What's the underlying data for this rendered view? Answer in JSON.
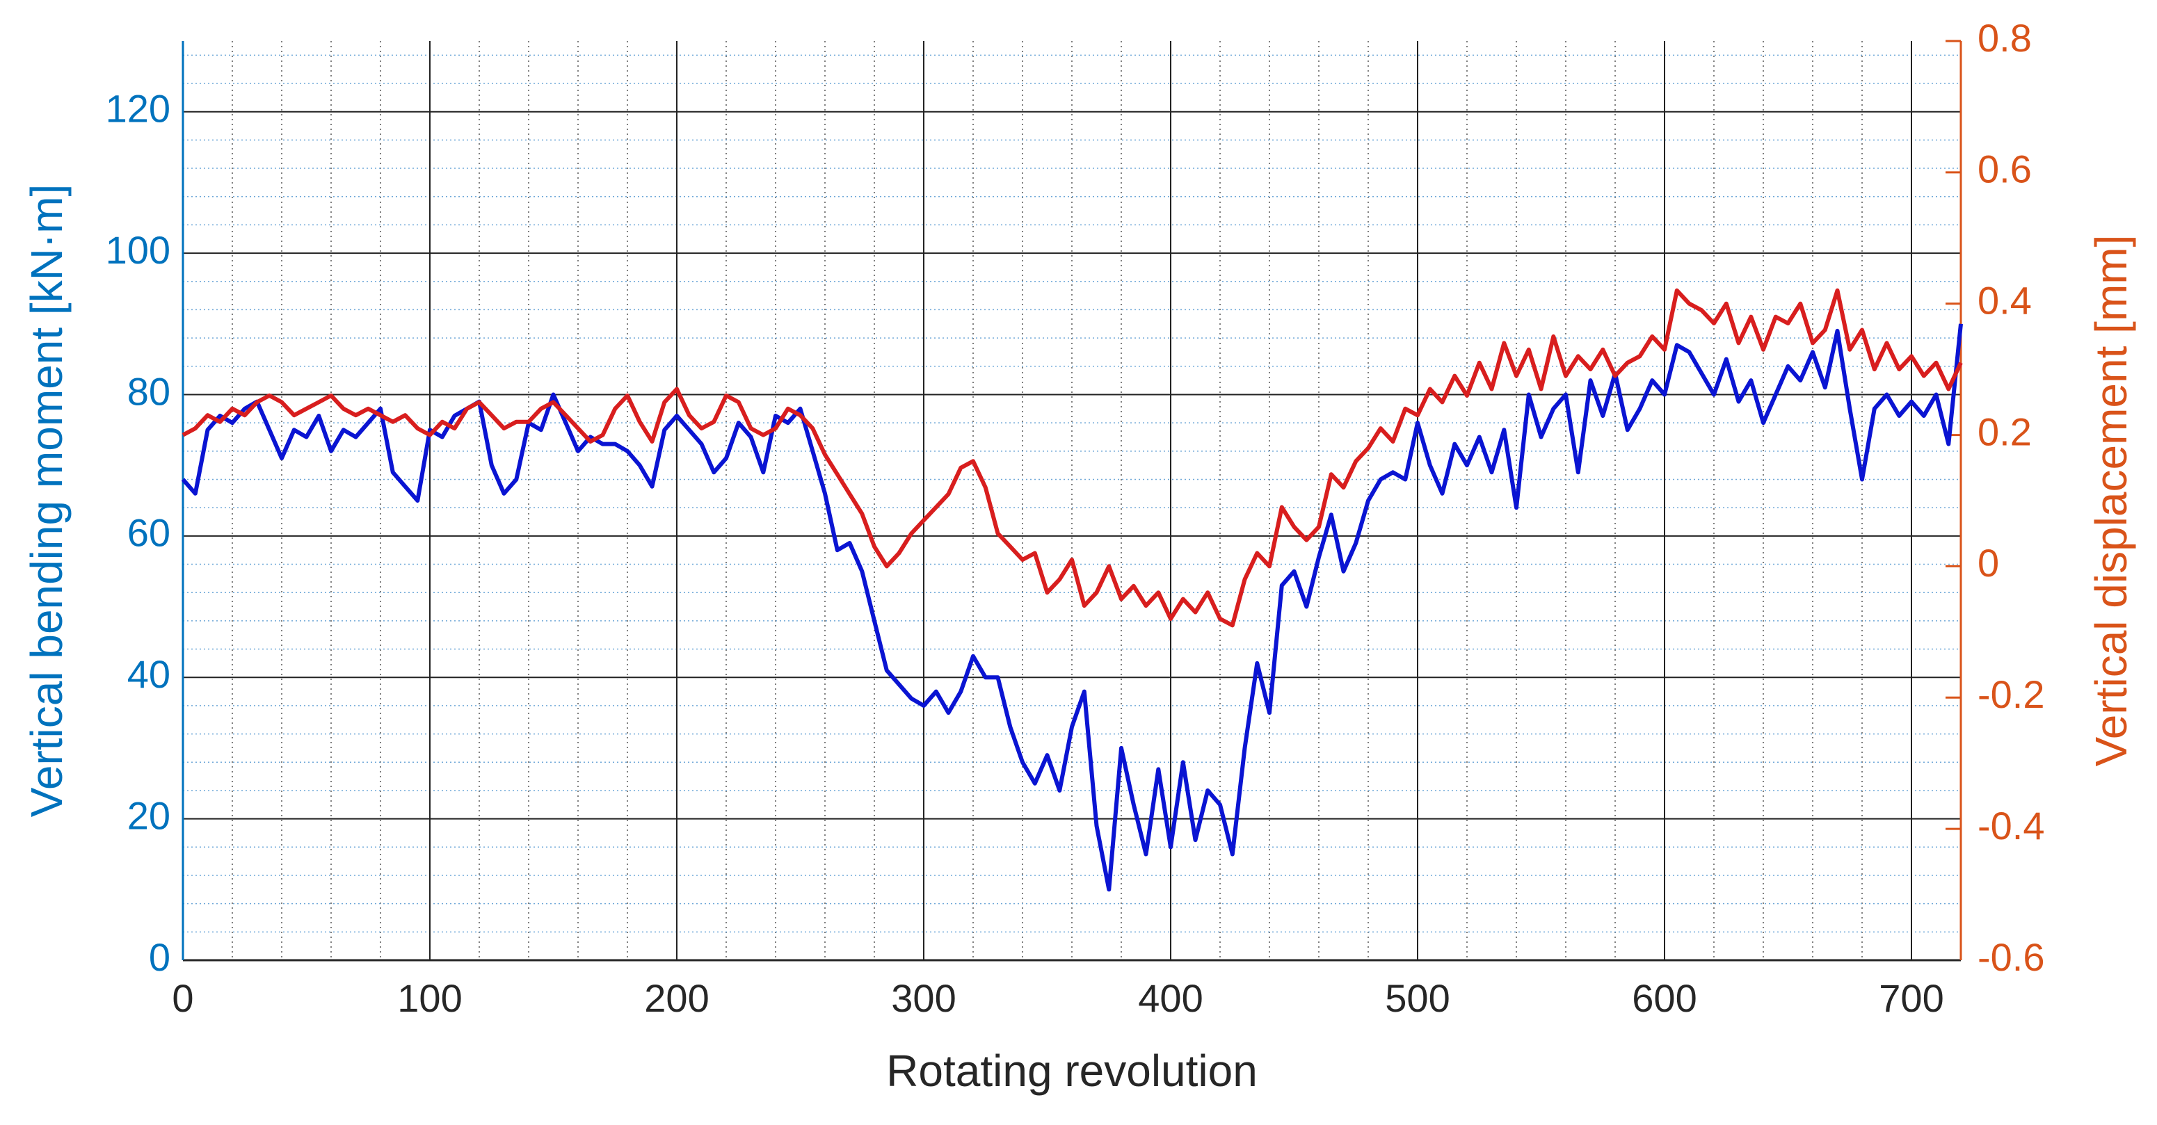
{
  "chart_data": {
    "type": "line",
    "xlabel": "Rotating revolution",
    "ylabel": "Vertical bending moment [kN·m]",
    "y2label": "Vertical displacement [mm]",
    "xlim": [
      0,
      720
    ],
    "xticks": [
      0,
      100,
      200,
      300,
      400,
      500,
      600,
      700
    ],
    "ylim": [
      0,
      130
    ],
    "yticks": [
      0,
      20,
      40,
      60,
      80,
      100,
      120
    ],
    "y2lim": [
      -0.6,
      0.8
    ],
    "y2ticks": [
      -0.6,
      -0.4,
      -0.2,
      0,
      0.2,
      0.4,
      0.6,
      0.8
    ],
    "xminorticks": [
      20,
      40,
      60,
      80,
      120,
      140,
      160,
      180,
      220,
      240,
      260,
      280,
      320,
      340,
      360,
      380,
      420,
      440,
      460,
      480,
      520,
      540,
      560,
      580,
      620,
      640,
      660,
      680,
      720
    ],
    "yminorticks": [
      4,
      8,
      12,
      16,
      24,
      28,
      32,
      36,
      44,
      48,
      52,
      56,
      64,
      68,
      72,
      76,
      84,
      88,
      92,
      96,
      104,
      108,
      112,
      116,
      124,
      128
    ],
    "grid": true,
    "minor_grid": true,
    "y_color": "#0072bd",
    "y2_color": "#d95319",
    "x": [
      0,
      5,
      10,
      15,
      20,
      25,
      30,
      35,
      40,
      45,
      50,
      55,
      60,
      65,
      70,
      75,
      80,
      85,
      90,
      95,
      100,
      105,
      110,
      115,
      120,
      125,
      130,
      135,
      140,
      145,
      150,
      155,
      160,
      165,
      170,
      175,
      180,
      185,
      190,
      195,
      200,
      205,
      210,
      215,
      220,
      225,
      230,
      235,
      240,
      245,
      250,
      255,
      260,
      265,
      270,
      275,
      280,
      285,
      290,
      295,
      300,
      305,
      310,
      315,
      320,
      325,
      330,
      335,
      340,
      345,
      350,
      355,
      360,
      365,
      370,
      375,
      380,
      385,
      390,
      395,
      400,
      405,
      410,
      415,
      420,
      425,
      430,
      435,
      440,
      445,
      450,
      455,
      460,
      465,
      470,
      475,
      480,
      485,
      490,
      495,
      500,
      505,
      510,
      515,
      520,
      525,
      530,
      535,
      540,
      545,
      550,
      555,
      560,
      565,
      570,
      575,
      580,
      585,
      590,
      595,
      600,
      605,
      610,
      615,
      620,
      625,
      630,
      635,
      640,
      645,
      650,
      655,
      660,
      665,
      670,
      675,
      680,
      685,
      690,
      695,
      700,
      705,
      710,
      715,
      720
    ],
    "series": [
      {
        "color": "#0a14d2",
        "axis": "y",
        "values": [
          68,
          66,
          75,
          77,
          76,
          78,
          79,
          75,
          71,
          75,
          74,
          77,
          72,
          75,
          74,
          76,
          78,
          69,
          67,
          65,
          75,
          74,
          77,
          78,
          79,
          70,
          66,
          68,
          76,
          75,
          80,
          76,
          72,
          74,
          73,
          73,
          72,
          70,
          67,
          75,
          77,
          75,
          73,
          69,
          71,
          76,
          74,
          69,
          77,
          76,
          78,
          72,
          66,
          58,
          59,
          55,
          48,
          41,
          39,
          37,
          36,
          38,
          35,
          38,
          43,
          40,
          40,
          33,
          28,
          25,
          29,
          24,
          33,
          38,
          19,
          10,
          30,
          22,
          15,
          27,
          16,
          28,
          17,
          24,
          22,
          15,
          30,
          42,
          35,
          53,
          55,
          50,
          57,
          63,
          55,
          59,
          65,
          68,
          69,
          68,
          76,
          70,
          66,
          73,
          70,
          74,
          69,
          75,
          64,
          80,
          74,
          78,
          80,
          69,
          82,
          77,
          83,
          75,
          78,
          82,
          80,
          87,
          86,
          83,
          80,
          85,
          79,
          82,
          76,
          80,
          84,
          82,
          86,
          81,
          89,
          78,
          68,
          78,
          80,
          77,
          79,
          77,
          80,
          73,
          90
        ]
      },
      {
        "color": "#d81e1e",
        "axis": "y2",
        "values": [
          0.2,
          0.21,
          0.23,
          0.22,
          0.24,
          0.23,
          0.25,
          0.26,
          0.25,
          0.23,
          0.24,
          0.25,
          0.26,
          0.24,
          0.23,
          0.24,
          0.23,
          0.22,
          0.23,
          0.21,
          0.2,
          0.22,
          0.21,
          0.24,
          0.25,
          0.23,
          0.21,
          0.22,
          0.22,
          0.24,
          0.25,
          0.23,
          0.21,
          0.19,
          0.2,
          0.24,
          0.26,
          0.22,
          0.19,
          0.25,
          0.27,
          0.23,
          0.21,
          0.22,
          0.26,
          0.25,
          0.21,
          0.2,
          0.21,
          0.24,
          0.23,
          0.21,
          0.17,
          0.14,
          0.11,
          0.08,
          0.03,
          0.0,
          0.02,
          0.05,
          0.07,
          0.09,
          0.11,
          0.15,
          0.16,
          0.12,
          0.05,
          0.03,
          0.01,
          0.02,
          -0.04,
          -0.02,
          0.01,
          -0.06,
          -0.04,
          0.0,
          -0.05,
          -0.03,
          -0.06,
          -0.04,
          -0.08,
          -0.05,
          -0.07,
          -0.04,
          -0.08,
          -0.09,
          -0.02,
          0.02,
          0.0,
          0.09,
          0.06,
          0.04,
          0.06,
          0.14,
          0.12,
          0.16,
          0.18,
          0.21,
          0.19,
          0.24,
          0.23,
          0.27,
          0.25,
          0.29,
          0.26,
          0.31,
          0.27,
          0.34,
          0.29,
          0.33,
          0.27,
          0.35,
          0.29,
          0.32,
          0.3,
          0.33,
          0.29,
          0.31,
          0.32,
          0.35,
          0.33,
          0.42,
          0.4,
          0.39,
          0.37,
          0.4,
          0.34,
          0.38,
          0.33,
          0.38,
          0.37,
          0.4,
          0.34,
          0.36,
          0.42,
          0.33,
          0.36,
          0.3,
          0.34,
          0.3,
          0.32,
          0.29,
          0.31,
          0.27,
          0.31
        ]
      }
    ]
  }
}
